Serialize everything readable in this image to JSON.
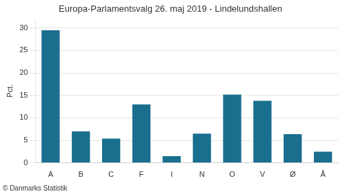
{
  "chart_data": {
    "type": "bar",
    "title": "Europa-Parlamentsvalg 26. maj 2019 - Lindelundshallen",
    "categories": [
      "A",
      "B",
      "C",
      "F",
      "I",
      "N",
      "O",
      "V",
      "Ø",
      "Å"
    ],
    "values": [
      29.5,
      7.0,
      5.4,
      13.0,
      1.5,
      6.5,
      15.2,
      13.8,
      6.4,
      2.5
    ],
    "color": "#1a6e8e",
    "ylabel": "Pct.",
    "ylim": [
      0,
      32
    ],
    "yticks": [
      0,
      5,
      10,
      15,
      20,
      25,
      30
    ],
    "grid": true,
    "annotations": [
      "© Danmarks Statistik"
    ]
  }
}
